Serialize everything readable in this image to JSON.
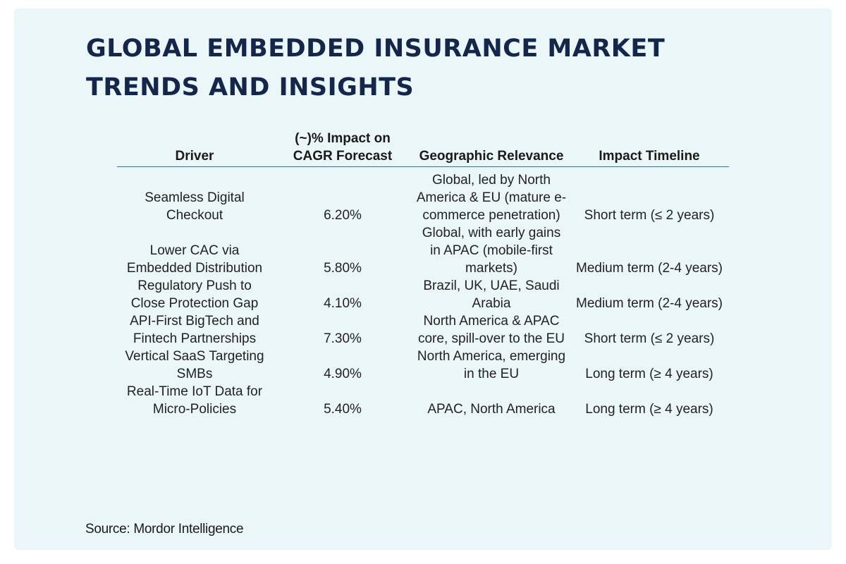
{
  "title_line1": "GLOBAL EMBEDDED INSURANCE MARKET",
  "title_line2": "TRENDS AND INSIGHTS",
  "table": {
    "headers": {
      "driver": "Driver",
      "impact": "(~)% Impact on CAGR Forecast",
      "geo": "Geographic Relevance",
      "timeline": "Impact Timeline"
    },
    "rows": [
      {
        "driver": "Seamless Digital Checkout",
        "impact": "6.20%",
        "geo": "Global, led by North America & EU (mature e-commerce penetration)",
        "timeline": "Short term (≤ 2 years)"
      },
      {
        "driver": "Lower CAC via Embedded Distribution",
        "impact": "5.80%",
        "geo": "Global, with early gains in APAC (mobile-first markets)",
        "timeline": "Medium term (2-4 years)"
      },
      {
        "driver": "Regulatory Push to Close Protection Gap",
        "impact": "4.10%",
        "geo": "Brazil, UK, UAE, Saudi Arabia",
        "timeline": "Medium term (2-4 years)"
      },
      {
        "driver": "API-First BigTech and Fintech Partnerships",
        "impact": "7.30%",
        "geo": "North America & APAC core, spill-over to the EU",
        "timeline": "Short term (≤ 2 years)"
      },
      {
        "driver": "Vertical SaaS Targeting SMBs",
        "impact": "4.90%",
        "geo": "North America, emerging in the EU",
        "timeline": "Long term (≥ 4 years)"
      },
      {
        "driver": "Real-Time IoT Data for Micro-Policies",
        "impact": "5.40%",
        "geo": "APAC, North America",
        "timeline": "Long term (≥ 4 years)"
      }
    ]
  },
  "source": "Source: Mordor Intelligence"
}
